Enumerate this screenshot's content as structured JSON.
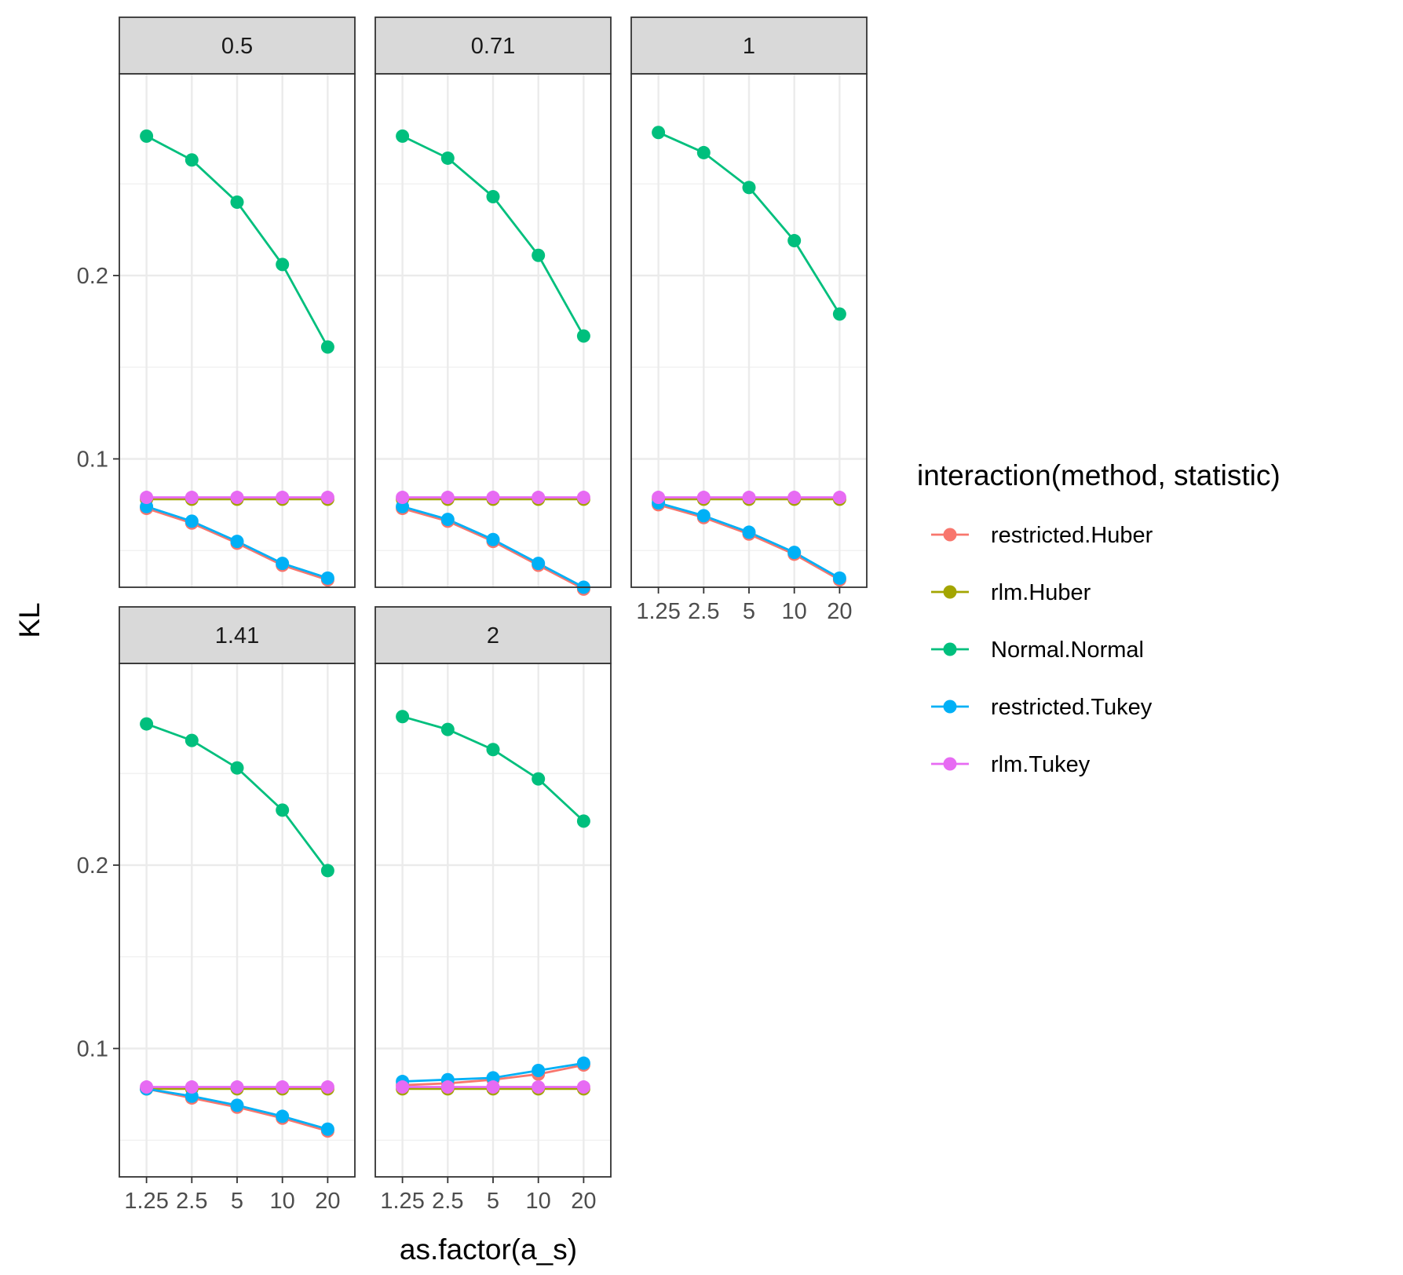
{
  "chart_data": {
    "type": "line",
    "facet_style": "wrap",
    "x_categories": [
      "1.25",
      "2.5",
      "5",
      "10",
      "20"
    ],
    "xlabel": "as.factor(a_s)",
    "ylabel": "KL",
    "y_ticks": [
      "0.1",
      "0.2"
    ],
    "y_tick_values": [
      0.1,
      0.2
    ],
    "ylim": [
      0.03,
      0.31
    ],
    "legend": {
      "title": "interaction(method, statistic)",
      "position": "right",
      "entries": [
        {
          "name": "restricted.Huber",
          "color": "#F8766D"
        },
        {
          "name": "rlm.Huber",
          "color": "#A3A500"
        },
        {
          "name": "Normal.Normal",
          "color": "#00BF7D"
        },
        {
          "name": "restricted.Tukey",
          "color": "#00B0F6"
        },
        {
          "name": "rlm.Tukey",
          "color": "#E76BF3"
        }
      ]
    },
    "panels": [
      {
        "label": "0.5",
        "series": [
          {
            "name": "restricted.Huber",
            "values": [
              0.073,
              0.065,
              0.054,
              0.042,
              0.034
            ]
          },
          {
            "name": "rlm.Huber",
            "values": [
              0.078,
              0.078,
              0.078,
              0.078,
              0.078
            ]
          },
          {
            "name": "Normal.Normal",
            "values": [
              0.276,
              0.263,
              0.24,
              0.206,
              0.161
            ]
          },
          {
            "name": "restricted.Tukey",
            "values": [
              0.074,
              0.066,
              0.055,
              0.043,
              0.035
            ]
          },
          {
            "name": "rlm.Tukey",
            "values": [
              0.079,
              0.079,
              0.079,
              0.079,
              0.079
            ]
          }
        ]
      },
      {
        "label": "0.71",
        "series": [
          {
            "name": "restricted.Huber",
            "values": [
              0.073,
              0.066,
              0.055,
              0.042,
              0.029
            ]
          },
          {
            "name": "rlm.Huber",
            "values": [
              0.078,
              0.078,
              0.078,
              0.078,
              0.078
            ]
          },
          {
            "name": "Normal.Normal",
            "values": [
              0.276,
              0.264,
              0.243,
              0.211,
              0.167
            ]
          },
          {
            "name": "restricted.Tukey",
            "values": [
              0.074,
              0.067,
              0.056,
              0.043,
              0.03
            ]
          },
          {
            "name": "rlm.Tukey",
            "values": [
              0.079,
              0.079,
              0.079,
              0.079,
              0.079
            ]
          }
        ]
      },
      {
        "label": "1",
        "series": [
          {
            "name": "restricted.Huber",
            "values": [
              0.075,
              0.068,
              0.059,
              0.048,
              0.034
            ]
          },
          {
            "name": "rlm.Huber",
            "values": [
              0.078,
              0.078,
              0.078,
              0.078,
              0.078
            ]
          },
          {
            "name": "Normal.Normal",
            "values": [
              0.278,
              0.267,
              0.248,
              0.219,
              0.179
            ]
          },
          {
            "name": "restricted.Tukey",
            "values": [
              0.076,
              0.069,
              0.06,
              0.049,
              0.035
            ]
          },
          {
            "name": "rlm.Tukey",
            "values": [
              0.079,
              0.079,
              0.079,
              0.079,
              0.079
            ]
          }
        ]
      },
      {
        "label": "1.41",
        "series": [
          {
            "name": "restricted.Huber",
            "values": [
              0.078,
              0.073,
              0.068,
              0.062,
              0.055
            ]
          },
          {
            "name": "rlm.Huber",
            "values": [
              0.078,
              0.078,
              0.078,
              0.078,
              0.078
            ]
          },
          {
            "name": "Normal.Normal",
            "values": [
              0.277,
              0.268,
              0.253,
              0.23,
              0.197
            ]
          },
          {
            "name": "restricted.Tukey",
            "values": [
              0.078,
              0.074,
              0.069,
              0.063,
              0.056
            ]
          },
          {
            "name": "rlm.Tukey",
            "values": [
              0.079,
              0.079,
              0.079,
              0.079,
              0.079
            ]
          }
        ]
      },
      {
        "label": "2",
        "series": [
          {
            "name": "restricted.Huber",
            "values": [
              0.08,
              0.081,
              0.083,
              0.086,
              0.091
            ]
          },
          {
            "name": "rlm.Huber",
            "values": [
              0.078,
              0.078,
              0.078,
              0.078,
              0.078
            ]
          },
          {
            "name": "Normal.Normal",
            "values": [
              0.281,
              0.274,
              0.263,
              0.247,
              0.224
            ]
          },
          {
            "name": "restricted.Tukey",
            "values": [
              0.082,
              0.083,
              0.084,
              0.088,
              0.092
            ]
          },
          {
            "name": "rlm.Tukey",
            "values": [
              0.079,
              0.079,
              0.079,
              0.079,
              0.079
            ]
          }
        ]
      }
    ]
  }
}
